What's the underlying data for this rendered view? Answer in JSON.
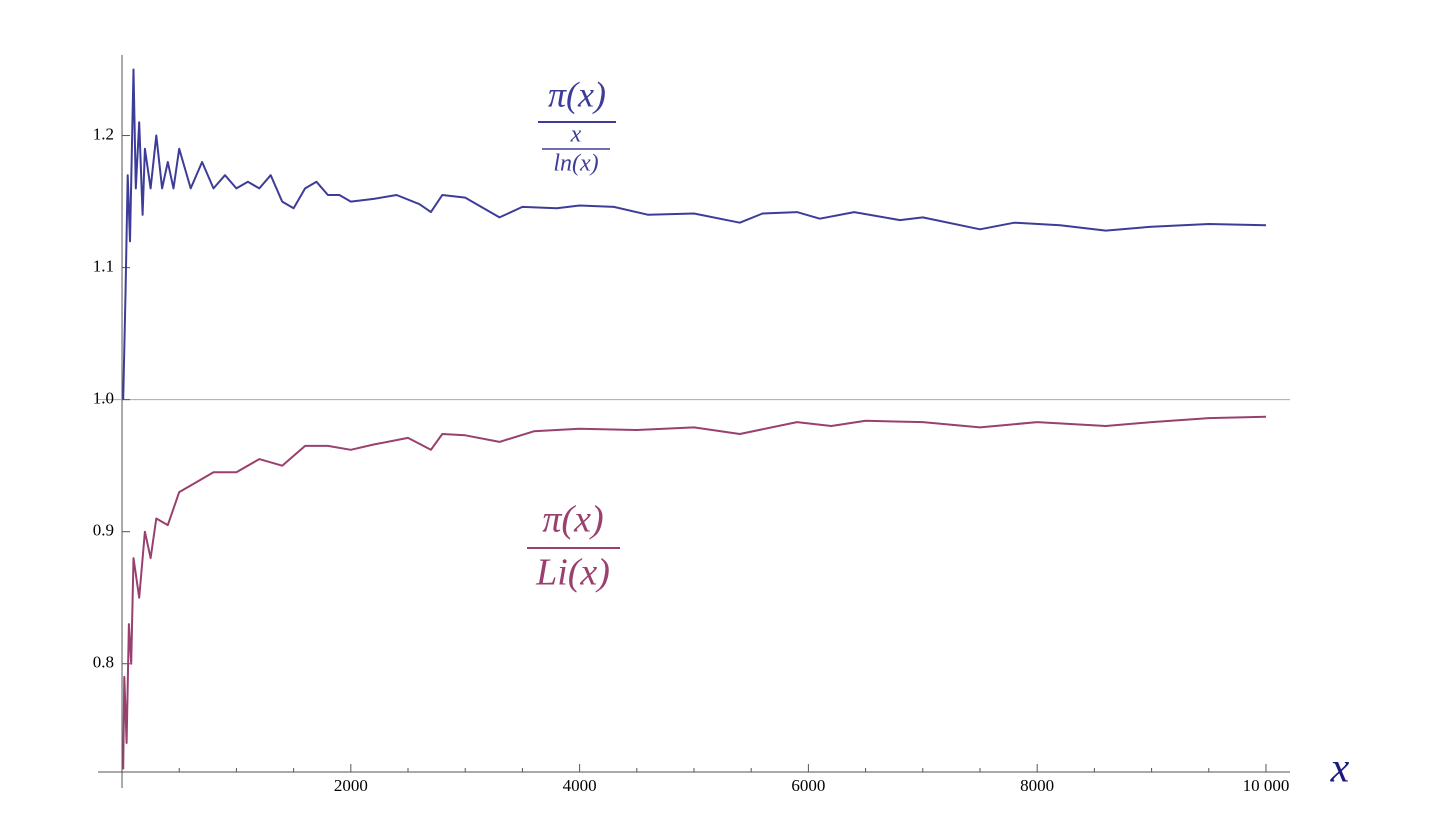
{
  "chart_data": {
    "type": "line",
    "xlim": [
      -210,
      10210
    ],
    "ylim": [
      0.718,
      1.261
    ],
    "xticks": [
      2000,
      4000,
      6000,
      8000,
      {
        "value": 10000,
        "label": "10 000"
      }
    ],
    "xticks_minor": [
      500,
      1000,
      1500,
      2500,
      3000,
      3500,
      4500,
      5000,
      5500,
      6500,
      7000,
      7500,
      8500,
      9000,
      9500
    ],
    "yticks": [
      0.8,
      0.9,
      {
        "value": 1,
        "label": "1.0"
      },
      1.1,
      1.2
    ],
    "hline": 1,
    "x_label": "x",
    "annotations": [
      {
        "numerator": "π(x)",
        "denominator_top": "x",
        "denominator_bottom": "ln(x)",
        "color": "#3d3d99"
      },
      {
        "numerator": "π(x)",
        "denominator": "Li(x)",
        "color": "#99406e"
      }
    ],
    "series": [
      {
        "color": "#3d3d99",
        "x": [
          10,
          30,
          50,
          70,
          100,
          120,
          150,
          180,
          200,
          250,
          300,
          350,
          400,
          450,
          500,
          600,
          700,
          800,
          900,
          1000,
          1100,
          1200,
          1300,
          1400,
          1500,
          1600,
          1700,
          1800,
          1900,
          2000,
          2200,
          2400,
          2600,
          2700,
          2800,
          3000,
          3300,
          3500,
          3800,
          4000,
          4300,
          4600,
          5000,
          5400,
          5600,
          5900,
          6100,
          6400,
          6800,
          7000,
          7500,
          7800,
          8200,
          8600,
          9000,
          9500,
          10000
        ],
        "values": [
          1.0,
          1.08,
          1.17,
          1.12,
          1.25,
          1.16,
          1.21,
          1.14,
          1.19,
          1.16,
          1.2,
          1.16,
          1.18,
          1.16,
          1.19,
          1.16,
          1.18,
          1.16,
          1.17,
          1.16,
          1.165,
          1.16,
          1.17,
          1.15,
          1.145,
          1.16,
          1.165,
          1.155,
          1.155,
          1.15,
          1.152,
          1.155,
          1.148,
          1.142,
          1.155,
          1.153,
          1.138,
          1.146,
          1.145,
          1.147,
          1.146,
          1.14,
          1.141,
          1.134,
          1.141,
          1.142,
          1.137,
          1.142,
          1.136,
          1.138,
          1.129,
          1.134,
          1.132,
          1.128,
          1.131,
          1.133,
          1.132
        ]
      },
      {
        "color": "#99406e",
        "x": [
          10,
          20,
          40,
          60,
          80,
          100,
          150,
          200,
          250,
          300,
          400,
          500,
          600,
          700,
          800,
          1000,
          1200,
          1400,
          1600,
          1800,
          2000,
          2200,
          2500,
          2700,
          2800,
          3000,
          3300,
          3600,
          4000,
          4500,
          5000,
          5400,
          5900,
          6200,
          6500,
          7000,
          7500,
          8000,
          8600,
          9000,
          9500,
          10000
        ],
        "values": [
          0.72,
          0.79,
          0.74,
          0.83,
          0.8,
          0.88,
          0.85,
          0.9,
          0.88,
          0.91,
          0.905,
          0.93,
          0.935,
          0.94,
          0.945,
          0.945,
          0.955,
          0.95,
          0.965,
          0.965,
          0.962,
          0.966,
          0.971,
          0.962,
          0.974,
          0.973,
          0.968,
          0.976,
          0.978,
          0.977,
          0.979,
          0.974,
          0.983,
          0.98,
          0.984,
          0.983,
          0.979,
          0.983,
          0.98,
          0.983,
          0.986,
          0.987
        ]
      }
    ]
  }
}
